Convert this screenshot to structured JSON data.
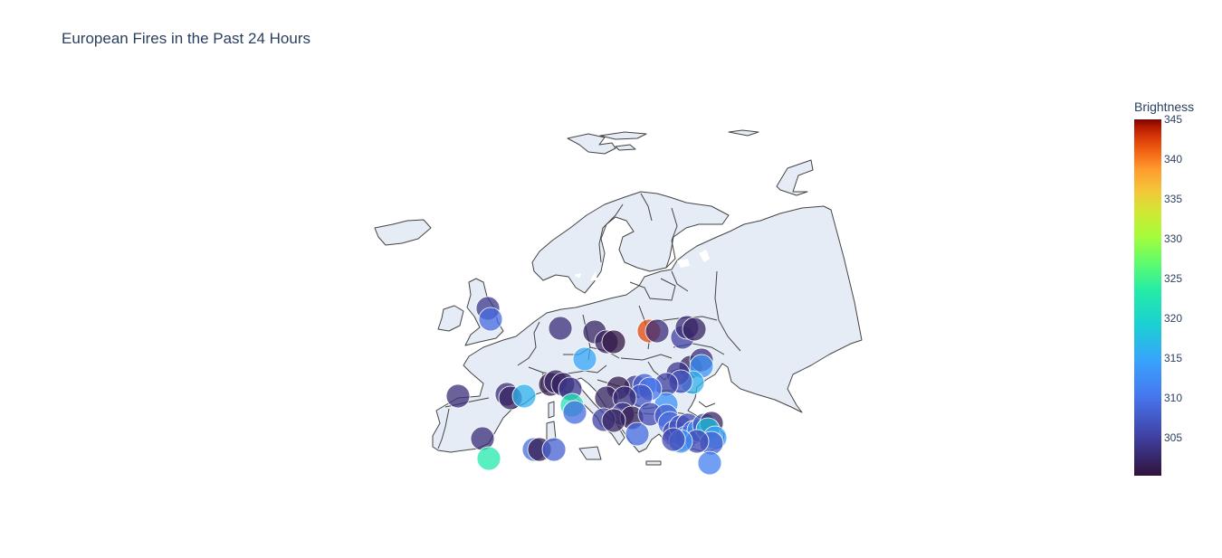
{
  "title": "European Fires in the Past 24 Hours",
  "colorbar": {
    "title": "Brightness",
    "ticks": [
      "345",
      "340",
      "335",
      "330",
      "325",
      "320",
      "315",
      "310",
      "305"
    ],
    "min": 300.1,
    "max": 345
  },
  "colors": {
    "land": "#e5ecf6",
    "border": "#444444",
    "text": "#2a3f5f"
  }
}
